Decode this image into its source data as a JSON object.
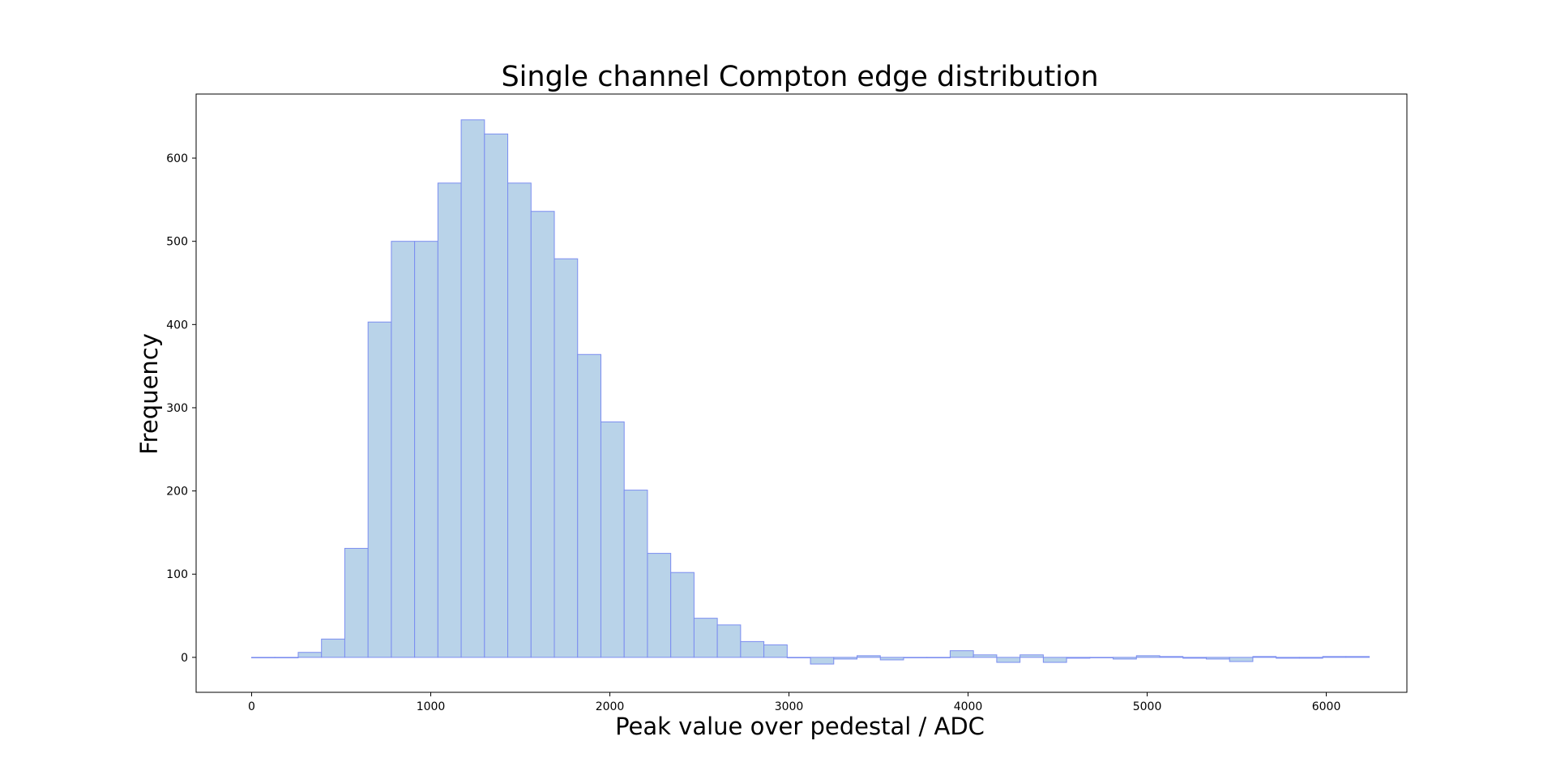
{
  "chart_data": {
    "type": "bar",
    "title": "Single channel Compton edge distribution",
    "xlabel": "Peak value over pedestal / ADC",
    "ylabel": "Frequency",
    "xlim": [
      -310,
      6450
    ],
    "ylim": [
      -42,
      677
    ],
    "xticks": [
      0,
      1000,
      2000,
      3000,
      4000,
      5000,
      6000
    ],
    "yticks": [
      0,
      100,
      200,
      300,
      400,
      500,
      600
    ],
    "grid": false,
    "legend": "none",
    "bin_width": 130,
    "x_first_bin_left": 0,
    "values": [
      0,
      0,
      6,
      22,
      131,
      403,
      500,
      500,
      570,
      646,
      629,
      570,
      536,
      479,
      364,
      283,
      201,
      125,
      102,
      47,
      39,
      19,
      15,
      0,
      -8,
      -2,
      2,
      -3,
      0,
      0,
      8,
      3,
      -6,
      3,
      -6,
      -1,
      0,
      -2,
      2,
      1,
      -1,
      -2,
      -5,
      1,
      -1,
      -1,
      1,
      1
    ],
    "colors": {
      "fill": "#b9d3e9",
      "edge": "#7b8df0"
    }
  }
}
